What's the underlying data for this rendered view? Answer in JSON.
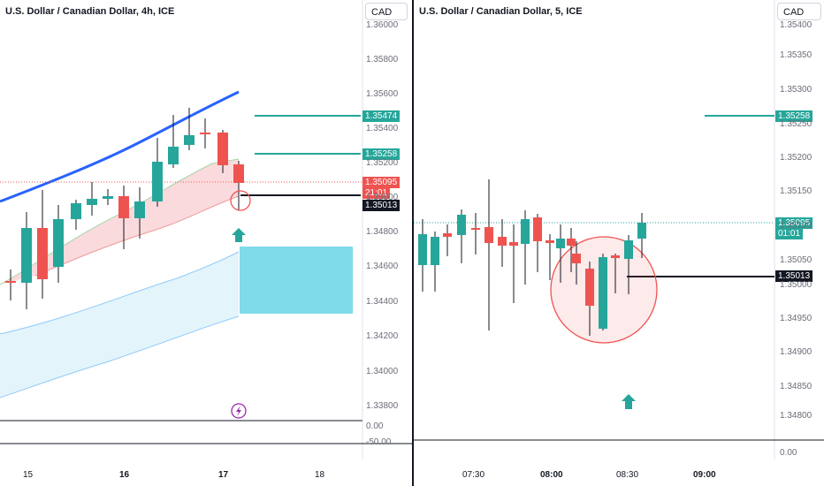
{
  "left_pane": {
    "title": "U.S. Dollar / Canadian Dollar, 4h, ICE",
    "currency_button": "CAD",
    "price_axis": [
      "1.36000",
      "1.35800",
      "1.35600",
      "1.35400",
      "1.35200",
      "1.35000",
      "1.34800",
      "1.34600",
      "1.34400",
      "1.34200",
      "1.34000",
      "1.33800"
    ],
    "sub_axis": [
      "0.00",
      "-50.00"
    ],
    "time_axis": [
      "15",
      "16",
      "17",
      "18"
    ],
    "level_tags": {
      "upper": "1.35474",
      "middle": "1.35258",
      "current": "1.35095",
      "countdown": "21:01",
      "marked": "1.35013"
    },
    "event_icon": "lightning-event-icon"
  },
  "right_pane": {
    "title": "U.S. Dollar / Canadian Dollar, 5, ICE",
    "currency_button": "CAD",
    "price_axis": [
      "1.35400",
      "1.35350",
      "1.35300",
      "1.35250",
      "1.35200",
      "1.35150",
      "1.35100",
      "1.35050",
      "1.35000",
      "1.34950",
      "1.34900",
      "1.34850",
      "1.34800"
    ],
    "sub_axis": [
      "0.00"
    ],
    "time_axis": [
      "07:30",
      "08:00",
      "08:30",
      "09:00"
    ],
    "level_tags": {
      "middle": "1.35258",
      "current": "1.35095",
      "countdown": "01:01",
      "marked": "1.35013"
    }
  },
  "colors": {
    "bull": "#26a69a",
    "bear": "#ef5350",
    "teal_level": "#26a69a",
    "ma_blue": "#2962ff",
    "zone": "#7fdbe8",
    "black_level": "#131722",
    "arrow": "#26a69a"
  }
}
